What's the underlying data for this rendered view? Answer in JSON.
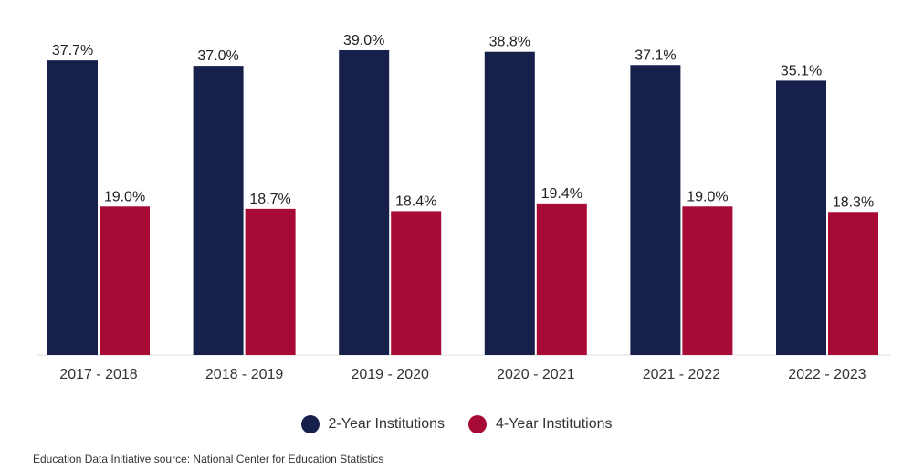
{
  "chart_data": {
    "type": "bar",
    "categories": [
      "2017 - 2018",
      "2018 - 2019",
      "2019 - 2020",
      "2020 - 2021",
      "2021 - 2022",
      "2022 - 2023"
    ],
    "series": [
      {
        "name": "2-Year Institutions",
        "color": "#16204a",
        "values": [
          37.7,
          37.0,
          39.0,
          38.8,
          37.1,
          35.1
        ],
        "labels": [
          "37.7%",
          "37.0%",
          "39.0%",
          "38.8%",
          "37.1%",
          "35.1%"
        ]
      },
      {
        "name": "4-Year Institutions",
        "color": "#a60a35",
        "values": [
          19.0,
          18.7,
          18.4,
          19.4,
          19.0,
          18.3
        ],
        "labels": [
          "19.0%",
          "18.7%",
          "18.4%",
          "19.4%",
          "19.0%",
          "18.3%"
        ]
      }
    ],
    "ylim": [
      0,
      40
    ],
    "grid": false,
    "legend_position": "bottom-center"
  },
  "legend": {
    "items": [
      {
        "label": "2-Year Institutions",
        "color": "#16204a"
      },
      {
        "label": "4-Year Institutions",
        "color": "#a60a35"
      }
    ]
  },
  "source": "Education Data Initiative source: National Center for Education Statistics"
}
